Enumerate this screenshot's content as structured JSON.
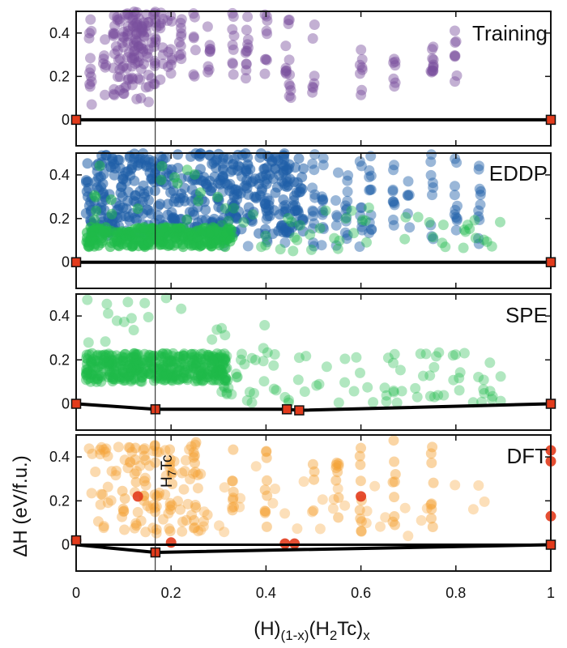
{
  "chart_data": {
    "type": "scatter",
    "xlabel": {
      "base": "(H)",
      "sub1": "(1-x)",
      "mid": "(H",
      "sub2": "2",
      "end": "Tc)",
      "sub3": "x"
    },
    "ylabel": "ΔH (eV/f.u.)",
    "xlim": [
      0,
      1
    ],
    "ylim": [
      -0.12,
      0.5
    ],
    "x_ticks": [
      0,
      0.2,
      0.4,
      0.6,
      0.8,
      1
    ],
    "x_tick_labels": [
      "0",
      "0.2",
      "0.4",
      "0.6",
      "0.8",
      "1"
    ],
    "y_ticks": [
      0,
      0.2,
      0.4
    ],
    "y_tick_labels": [
      "0",
      "0.2",
      "0.4"
    ],
    "vline_x": 0.1667,
    "annotation": {
      "base": "H",
      "sub": "7",
      "end": "Tc",
      "x": 0.1667
    },
    "colors": {
      "training": "#7b4f9e",
      "eddp_blue": "#1f5fa8",
      "green": "#1fba4a",
      "dft": "#f5a236",
      "red": "#e23b1c",
      "hull": "#000000"
    },
    "panels": [
      {
        "label": "Training",
        "columns": [
          0.03,
          0.06,
          0.08,
          0.09,
          0.1,
          0.11,
          0.12,
          0.125,
          0.13,
          0.14,
          0.15,
          0.167,
          0.18,
          0.2,
          0.22,
          0.25,
          0.28,
          0.33,
          0.36,
          0.4,
          0.44,
          0.45,
          0.5,
          0.6,
          0.67,
          0.75,
          0.8
        ],
        "hull": [
          [
            0,
            0
          ],
          [
            1,
            0
          ]
        ],
        "hull_points": [
          [
            0,
            0
          ],
          [
            1,
            0
          ]
        ]
      },
      {
        "label": "EDDP",
        "columns": [
          0.31,
          0.33,
          0.36,
          0.4,
          0.44,
          0.5,
          0.52,
          0.55,
          0.57,
          0.6,
          0.62,
          0.67,
          0.7,
          0.75,
          0.8,
          0.85
        ],
        "hull": [
          [
            0,
            0
          ],
          [
            1,
            0
          ]
        ],
        "hull_points": [
          [
            0,
            0
          ],
          [
            1,
            0
          ]
        ]
      },
      {
        "label": "SPE",
        "hull": [
          [
            0,
            0
          ],
          [
            0.167,
            -0.025
          ],
          [
            0.444,
            -0.025
          ],
          [
            0.47,
            -0.03
          ],
          [
            1,
            0
          ]
        ],
        "hull_points": [
          [
            0,
            0
          ],
          [
            0.167,
            -0.025
          ],
          [
            0.444,
            -0.025
          ],
          [
            0.47,
            -0.03
          ],
          [
            1,
            0
          ]
        ]
      },
      {
        "label": "DFT",
        "columns": [
          0.1,
          0.125,
          0.143,
          0.167,
          0.2,
          0.25,
          0.33,
          0.4,
          0.5,
          0.55,
          0.6,
          0.67,
          0.75
        ],
        "hull": [
          [
            0,
            0
          ],
          [
            0.167,
            -0.035
          ],
          [
            1,
            0
          ]
        ],
        "hull_points": [
          [
            0,
            0.02
          ],
          [
            0.167,
            -0.035
          ],
          [
            1,
            0
          ]
        ],
        "red_points": [
          [
            0,
            0.02
          ],
          [
            0.2,
            0.01
          ],
          [
            0.44,
            0.005
          ],
          [
            0.46,
            0.005
          ],
          [
            0.6,
            0.22
          ],
          [
            0.13,
            0.22
          ],
          [
            1,
            0.43
          ],
          [
            1,
            0.13
          ],
          [
            1,
            0.38
          ]
        ]
      }
    ]
  }
}
